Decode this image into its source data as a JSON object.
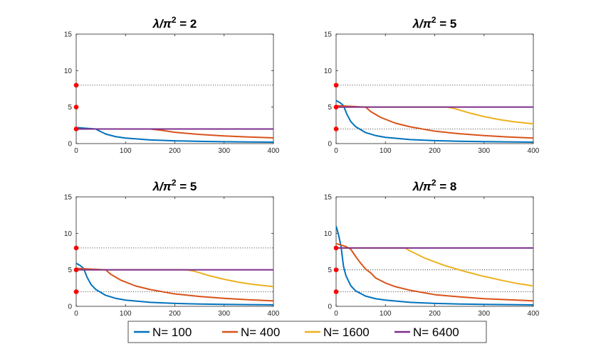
{
  "chart_data": [
    {
      "type": "line",
      "title_prefix": "λ/π",
      "title_exp": "2",
      "title_suffix": " = 2",
      "xlim": [
        0,
        400
      ],
      "ylim": [
        0,
        15
      ],
      "xticks": [
        0,
        100,
        200,
        300,
        400
      ],
      "yticks": [
        0,
        5,
        10,
        15
      ],
      "reference_lines_y": [
        2,
        8
      ],
      "red_dots_y": [
        2,
        5,
        8
      ],
      "series": [
        {
          "name": "N= 100",
          "x": [
            0,
            20,
            40,
            45,
            60,
            80,
            100,
            150,
            200,
            250,
            300,
            350,
            400
          ],
          "y": [
            2.2,
            2.1,
            2.0,
            1.8,
            1.3,
            0.95,
            0.75,
            0.5,
            0.38,
            0.3,
            0.25,
            0.22,
            0.2
          ]
        },
        {
          "name": "N= 400",
          "x": [
            0,
            50,
            100,
            150,
            175,
            200,
            250,
            300,
            350,
            400
          ],
          "y": [
            2,
            2,
            2,
            2,
            1.8,
            1.55,
            1.25,
            1.05,
            0.9,
            0.78
          ]
        },
        {
          "name": "N= 1600",
          "x": [
            0,
            400
          ],
          "y": [
            2,
            2
          ]
        },
        {
          "name": "N= 6400",
          "x": [
            0,
            400
          ],
          "y": [
            2,
            2
          ]
        }
      ]
    },
    {
      "type": "line",
      "title_prefix": "λ/π",
      "title_exp": "2",
      "title_suffix": " = 5",
      "xlim": [
        0,
        400
      ],
      "ylim": [
        0,
        15
      ],
      "xticks": [
        0,
        100,
        200,
        300,
        400
      ],
      "yticks": [
        0,
        5,
        10,
        15
      ],
      "reference_lines_y": [
        2,
        5,
        8
      ],
      "red_dots_y": [
        2,
        5,
        8
      ],
      "series": [
        {
          "name": "N= 100",
          "x": [
            0,
            8,
            15,
            22,
            30,
            40,
            60,
            80,
            100,
            150,
            200,
            250,
            300,
            350,
            400
          ],
          "y": [
            5.9,
            5.6,
            5.2,
            4.0,
            3.0,
            2.3,
            1.5,
            1.1,
            0.85,
            0.55,
            0.4,
            0.32,
            0.27,
            0.23,
            0.2
          ]
        },
        {
          "name": "N= 400",
          "x": [
            0,
            30,
            60,
            70,
            90,
            120,
            150,
            200,
            250,
            300,
            350,
            400
          ],
          "y": [
            5.2,
            5.1,
            5.0,
            4.4,
            3.6,
            2.8,
            2.3,
            1.7,
            1.35,
            1.1,
            0.9,
            0.75
          ]
        },
        {
          "name": "N= 1600",
          "x": [
            0,
            225,
            240,
            270,
            300,
            330,
            360,
            400
          ],
          "y": [
            5,
            5,
            4.8,
            4.2,
            3.7,
            3.3,
            3.0,
            2.7
          ]
        },
        {
          "name": "N= 6400",
          "x": [
            0,
            400
          ],
          "y": [
            5,
            5
          ]
        }
      ]
    },
    {
      "type": "line",
      "title_prefix": "λ/π",
      "title_exp": "2",
      "title_suffix": " = 5",
      "xlim": [
        0,
        400
      ],
      "ylim": [
        0,
        15
      ],
      "xticks": [
        0,
        100,
        200,
        300,
        400
      ],
      "yticks": [
        0,
        5,
        10,
        15
      ],
      "reference_lines_y": [
        2,
        5,
        8
      ],
      "red_dots_y": [
        2,
        5,
        8
      ],
      "series": [
        {
          "name": "N= 100",
          "x": [
            0,
            8,
            15,
            22,
            30,
            40,
            60,
            80,
            100,
            150,
            200,
            250,
            300,
            350,
            400
          ],
          "y": [
            5.9,
            5.6,
            5.2,
            4.0,
            3.0,
            2.3,
            1.5,
            1.1,
            0.85,
            0.55,
            0.4,
            0.32,
            0.27,
            0.23,
            0.2
          ]
        },
        {
          "name": "N= 400",
          "x": [
            0,
            30,
            60,
            70,
            90,
            120,
            150,
            200,
            250,
            300,
            350,
            400
          ],
          "y": [
            5.2,
            5.1,
            5.0,
            4.4,
            3.6,
            2.8,
            2.3,
            1.7,
            1.35,
            1.1,
            0.9,
            0.75
          ]
        },
        {
          "name": "N= 1600",
          "x": [
            0,
            225,
            240,
            270,
            300,
            330,
            360,
            400
          ],
          "y": [
            5,
            5,
            4.8,
            4.2,
            3.7,
            3.3,
            3.0,
            2.7
          ]
        },
        {
          "name": "N= 6400",
          "x": [
            0,
            400
          ],
          "y": [
            5,
            5
          ]
        }
      ]
    },
    {
      "type": "line",
      "title_prefix": "λ/π",
      "title_exp": "2",
      "title_suffix": " = 8",
      "xlim": [
        0,
        400
      ],
      "ylim": [
        0,
        15
      ],
      "xticks": [
        0,
        100,
        200,
        300,
        400
      ],
      "yticks": [
        0,
        5,
        10,
        15
      ],
      "reference_lines_y": [
        2,
        5,
        8
      ],
      "red_dots_y": [
        2,
        5,
        8
      ],
      "series": [
        {
          "name": "N= 100",
          "x": [
            0,
            5,
            10,
            15,
            20,
            30,
            40,
            60,
            80,
            100,
            150,
            200,
            250,
            300,
            350,
            400
          ],
          "y": [
            11,
            9.8,
            8.2,
            5.5,
            4.2,
            2.8,
            2.1,
            1.4,
            1.05,
            0.85,
            0.55,
            0.4,
            0.32,
            0.27,
            0.23,
            0.2
          ]
        },
        {
          "name": "N= 400",
          "x": [
            0,
            20,
            30,
            40,
            50,
            60,
            70,
            80,
            100,
            120,
            150,
            200,
            250,
            300,
            350,
            400
          ],
          "y": [
            8.6,
            8.2,
            7.8,
            6.8,
            5.9,
            5.1,
            4.6,
            3.9,
            3.2,
            2.7,
            2.2,
            1.6,
            1.3,
            1.05,
            0.9,
            0.75
          ]
        },
        {
          "name": "N= 1600",
          "x": [
            0,
            140,
            150,
            180,
            220,
            260,
            300,
            340,
            370,
            400
          ],
          "y": [
            8,
            8,
            7.6,
            6.6,
            5.6,
            4.8,
            4.1,
            3.5,
            3.1,
            2.8
          ]
        },
        {
          "name": "N= 6400",
          "x": [
            0,
            400
          ],
          "y": [
            8,
            8
          ]
        }
      ]
    }
  ],
  "legend": {
    "items": [
      "N= 100",
      "N= 400",
      "N= 1600",
      "N= 6400"
    ],
    "placement": "bottom-center"
  },
  "colors": {
    "N100": "#0072BD",
    "N400": "#D95319",
    "N1600": "#EDB120",
    "N6400": "#7E2F8E",
    "dots": "#FF0000",
    "axis": "#262626",
    "reference": "#000000"
  }
}
